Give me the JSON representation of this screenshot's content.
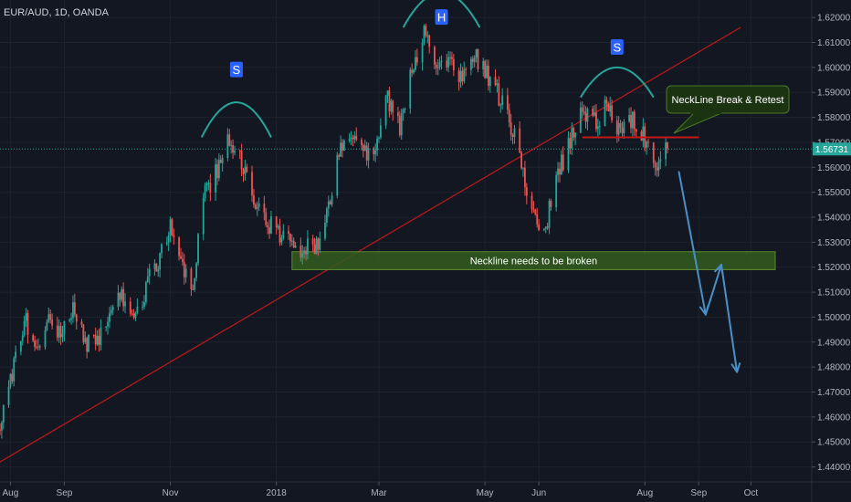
{
  "header": {
    "title": "EUR/AUD, 1D, OANDA"
  },
  "colors": {
    "background": "#131722",
    "grid": "#1e222d",
    "axis_line": "#2a2e39",
    "bull": "#26a69a",
    "bear": "#ef5350",
    "trendline": "#c21818",
    "arc": "#26a69a",
    "badge": "#2962ff",
    "zone_fill": "#335d1e",
    "zone_stroke": "#5c8a2e",
    "callout_fill": "#1c3312",
    "callout_stroke": "#4a7a22",
    "arrow": "#4a90c8",
    "price_tag": "#26a69a"
  },
  "chart_data": {
    "type": "candlestick",
    "symbol": "EUR/AUD",
    "timeframe": "1D",
    "source": "OANDA",
    "ylim": [
      1.434,
      1.627
    ],
    "y_ticks": [
      "1.62000",
      "1.61000",
      "1.60000",
      "1.59000",
      "1.58000",
      "1.57000",
      "1.56000",
      "1.55000",
      "1.54000",
      "1.53000",
      "1.52000",
      "1.51000",
      "1.50000",
      "1.49000",
      "1.48000",
      "1.47000",
      "1.46000",
      "1.45000",
      "1.44000"
    ],
    "x_ticks": [
      "Aug",
      "Sep",
      "Nov",
      "2018",
      "Mar",
      "May",
      "Jun",
      "Aug",
      "Sep",
      "Oct"
    ],
    "x_tick_dates": [
      "2017-08-01",
      "2017-09-01",
      "2017-11-01",
      "2018-01-01",
      "2018-03-01",
      "2018-05-01",
      "2018-06-01",
      "2018-08-01",
      "2018-09-01",
      "2018-10-01"
    ],
    "x_range": [
      "2017-07-26",
      "2018-11-05"
    ],
    "last_price": "1.56731",
    "last_price_value": 1.56731,
    "close_path": [
      [
        "2017-07-26",
        1.455
      ],
      [
        "2017-08-02",
        1.478
      ],
      [
        "2017-08-09",
        1.5
      ],
      [
        "2017-08-16",
        1.49
      ],
      [
        "2017-08-23",
        1.498
      ],
      [
        "2017-08-30",
        1.495
      ],
      [
        "2017-09-06",
        1.505
      ],
      [
        "2017-09-13",
        1.488
      ],
      [
        "2017-09-20",
        1.492
      ],
      [
        "2017-09-27",
        1.5
      ],
      [
        "2017-10-04",
        1.508
      ],
      [
        "2017-10-11",
        1.498
      ],
      [
        "2017-10-18",
        1.512
      ],
      [
        "2017-10-25",
        1.522
      ],
      [
        "2017-11-01",
        1.535
      ],
      [
        "2017-11-08",
        1.52
      ],
      [
        "2017-11-14",
        1.51
      ],
      [
        "2017-11-20",
        1.548
      ],
      [
        "2017-11-28",
        1.56
      ],
      [
        "2017-12-04",
        1.57
      ],
      [
        "2017-12-11",
        1.566
      ],
      [
        "2017-12-18",
        1.548
      ],
      [
        "2017-12-26",
        1.538
      ],
      [
        "2018-01-02",
        1.535
      ],
      [
        "2018-01-09",
        1.53
      ],
      [
        "2018-01-16",
        1.527
      ],
      [
        "2018-01-23",
        1.528
      ],
      [
        "2018-01-30",
        1.54
      ],
      [
        "2018-02-06",
        1.568
      ],
      [
        "2018-02-13",
        1.572
      ],
      [
        "2018-02-20",
        1.566
      ],
      [
        "2018-02-27",
        1.57
      ],
      [
        "2018-03-06",
        1.588
      ],
      [
        "2018-03-13",
        1.575
      ],
      [
        "2018-03-20",
        1.6
      ],
      [
        "2018-03-27",
        1.614
      ],
      [
        "2018-04-03",
        1.6
      ],
      [
        "2018-04-10",
        1.605
      ],
      [
        "2018-04-17",
        1.595
      ],
      [
        "2018-04-24",
        1.606
      ],
      [
        "2018-05-01",
        1.6
      ],
      [
        "2018-05-08",
        1.59
      ],
      [
        "2018-05-15",
        1.58
      ],
      [
        "2018-05-22",
        1.56
      ],
      [
        "2018-05-29",
        1.54
      ],
      [
        "2018-06-05",
        1.536
      ],
      [
        "2018-06-12",
        1.558
      ],
      [
        "2018-06-19",
        1.57
      ],
      [
        "2018-06-26",
        1.582
      ],
      [
        "2018-07-03",
        1.578
      ],
      [
        "2018-07-10",
        1.585
      ],
      [
        "2018-07-17",
        1.574
      ],
      [
        "2018-07-24",
        1.58
      ],
      [
        "2018-07-31",
        1.572
      ],
      [
        "2018-08-07",
        1.56
      ],
      [
        "2018-08-14",
        1.5673
      ]
    ],
    "projection_path": [
      [
        "2018-08-20",
        1.5603
      ],
      [
        "2018-09-05",
        1.501
      ],
      [
        "2018-09-14",
        1.521
      ],
      [
        "2018-09-23",
        1.478
      ]
    ],
    "trendline": [
      [
        "2017-07-26",
        1.442
      ],
      [
        "2018-09-25",
        1.616
      ]
    ],
    "neckline_zone": [
      1.519,
      1.5262
    ],
    "neckline_zone_range": [
      "2018-01-10",
      "2018-10-15"
    ],
    "retest_line": 1.572,
    "retest_line_range": [
      "2018-06-26",
      "2018-09-01"
    ],
    "shoulder_arcs": [
      {
        "label": "S",
        "center": "2017-12-09",
        "half_width_days": 20,
        "base": 1.572,
        "peak": 1.586,
        "badge_price": 1.599
      },
      {
        "label": "H",
        "center": "2018-04-06",
        "half_width_days": 22,
        "base": 1.616,
        "peak": 1.63,
        "badge_price": 1.62
      },
      {
        "label": "S",
        "center": "2018-07-16",
        "half_width_days": 21,
        "base": 1.588,
        "peak": 1.6,
        "badge_price": 1.608
      }
    ]
  },
  "annotations": {
    "callout": "NeckLine Break & Retest",
    "zone_label": "Neckline needs to be broken",
    "shoulder_left": "S",
    "head": "H",
    "shoulder_right": "S"
  }
}
